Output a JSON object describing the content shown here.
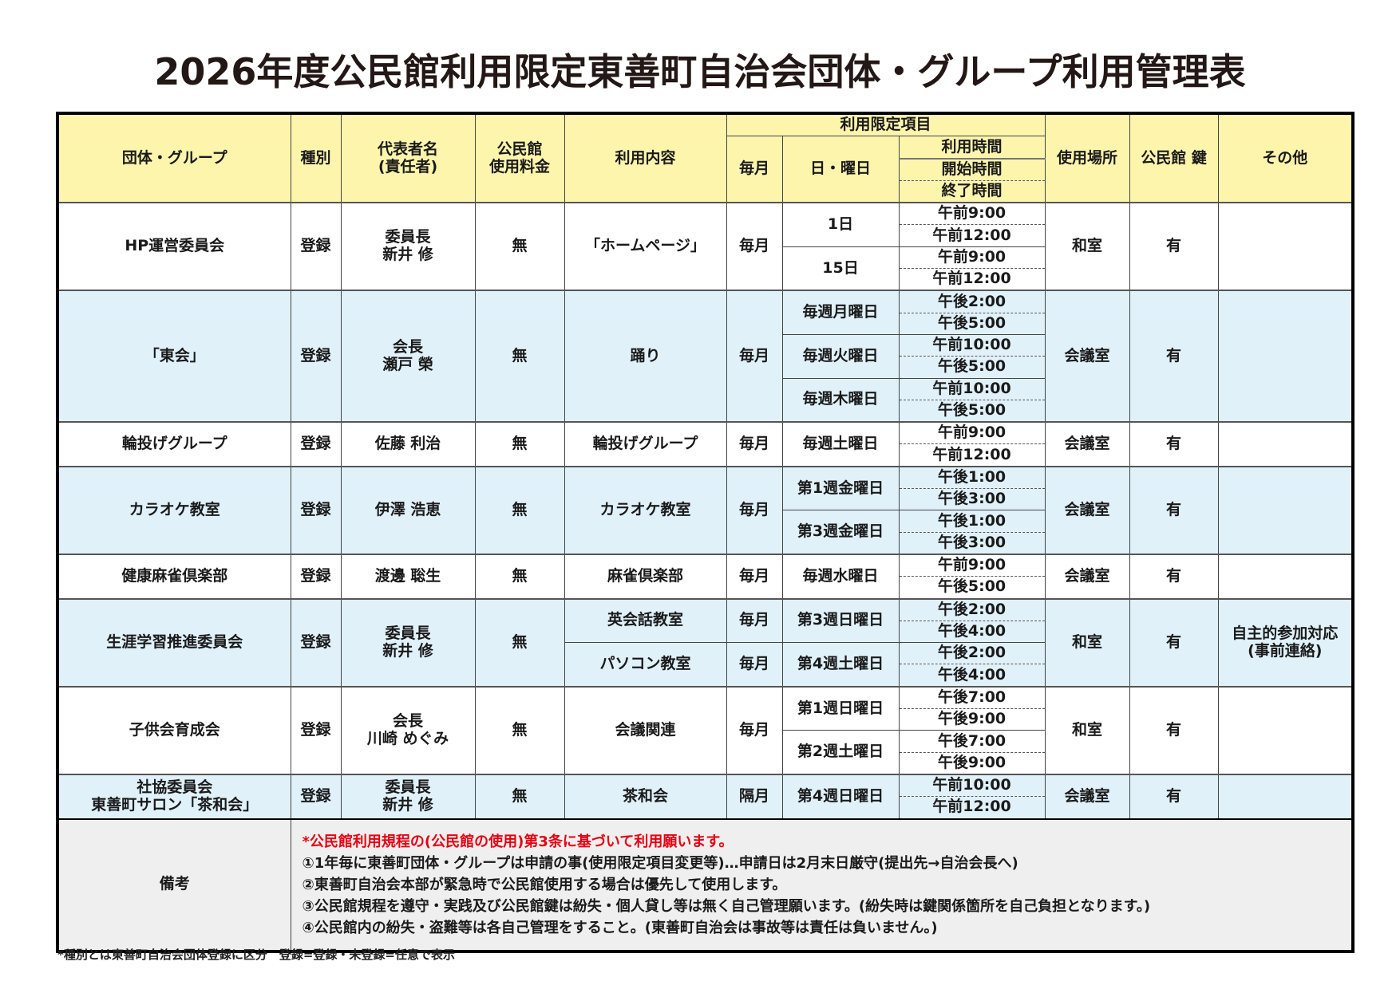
{
  "title": "2026年度公民館利用限定東善町自治会団体・グループ利用管理表",
  "colors": {
    "header_bg": "#fdf5ac",
    "alt_row_bg": "#e0f1fa",
    "remarks_bg": "#efefef",
    "notice_red": "#e60012"
  },
  "header": {
    "group": "団体・グループ",
    "type": "種別",
    "rep": "代表者名\n(責任者)",
    "fee": "公民館\n使用料金",
    "content": "利用内容",
    "limits": "利用限定項目",
    "freq": "毎月",
    "day": "日・曜日",
    "time": "利用時間",
    "start": "開始時間",
    "end": "終了時間",
    "place": "使用場所",
    "key": "公民館 鍵",
    "other": "その他"
  },
  "groups": [
    {
      "name": "HP運営委員会",
      "type": "登録",
      "rep": "委員長\n新井 修",
      "fee": "無",
      "place": "和室",
      "key": "有",
      "other": "",
      "contents": [
        {
          "label": "「ホームページ」",
          "freq": "毎月",
          "days": [
            {
              "day": "1日",
              "start": "午前9:00",
              "end": "午前12:00"
            },
            {
              "day": "15日",
              "start": "午前9:00",
              "end": "午前12:00"
            }
          ]
        }
      ]
    },
    {
      "name": "「東会」",
      "type": "登録",
      "rep": "会長\n瀬戸 榮",
      "fee": "無",
      "place": "会議室",
      "key": "有",
      "other": "",
      "contents": [
        {
          "label": "踊り",
          "freq": "毎月",
          "days": [
            {
              "day": "毎週月曜日",
              "start": "午後2:00",
              "end": "午後5:00"
            },
            {
              "day": "毎週火曜日",
              "start": "午前10:00",
              "end": "午後5:00"
            },
            {
              "day": "毎週木曜日",
              "start": "午前10:00",
              "end": "午後5:00"
            }
          ]
        }
      ]
    },
    {
      "name": "輪投げグループ",
      "type": "登録",
      "rep": "佐藤 利治",
      "fee": "無",
      "place": "会議室",
      "key": "有",
      "other": "",
      "contents": [
        {
          "label": "輪投げグループ",
          "freq": "毎月",
          "days": [
            {
              "day": "毎週土曜日",
              "start": "午前9:00",
              "end": "午前12:00"
            }
          ]
        }
      ]
    },
    {
      "name": "カラオケ教室",
      "type": "登録",
      "rep": "伊澤 浩恵",
      "fee": "無",
      "place": "会議室",
      "key": "有",
      "other": "",
      "contents": [
        {
          "label": "カラオケ教室",
          "freq": "毎月",
          "days": [
            {
              "day": "第1週金曜日",
              "start": "午後1:00",
              "end": "午後3:00"
            },
            {
              "day": "第3週金曜日",
              "start": "午後1:00",
              "end": "午後3:00"
            }
          ]
        }
      ]
    },
    {
      "name": "健康麻雀倶楽部",
      "type": "登録",
      "rep": "渡邊 聡生",
      "fee": "無",
      "place": "会議室",
      "key": "有",
      "other": "",
      "contents": [
        {
          "label": "麻雀倶楽部",
          "freq": "毎月",
          "days": [
            {
              "day": "毎週水曜日",
              "start": "午前9:00",
              "end": "午後5:00"
            }
          ]
        }
      ]
    },
    {
      "name": "生涯学習推進委員会",
      "type": "登録",
      "rep": "委員長\n新井 修",
      "fee": "無",
      "place": "和室",
      "key": "有",
      "other": "自主的参加対応\n(事前連絡)",
      "contents": [
        {
          "label": "英会話教室",
          "freq": "毎月",
          "days": [
            {
              "day": "第3週日曜日",
              "start": "午後2:00",
              "end": "午後4:00"
            }
          ]
        },
        {
          "label": "パソコン教室",
          "freq": "毎月",
          "days": [
            {
              "day": "第4週土曜日",
              "start": "午後2:00",
              "end": "午後4:00"
            }
          ]
        }
      ]
    },
    {
      "name": "子供会育成会",
      "type": "登録",
      "rep": "会長\n川崎 めぐみ",
      "fee": "無",
      "place": "和室",
      "key": "有",
      "other": "",
      "contents": [
        {
          "label": "会議関連",
          "freq": "毎月",
          "days": [
            {
              "day": "第1週日曜日",
              "start": "午後7:00",
              "end": "午後9:00"
            },
            {
              "day": "第2週土曜日",
              "start": "午後7:00",
              "end": "午後9:00"
            }
          ]
        }
      ]
    },
    {
      "name": "社協委員会\n東善町サロン「茶和会」",
      "type": "登録",
      "rep": "委員長\n新井 修",
      "fee": "無",
      "place": "会議室",
      "key": "有",
      "other": "",
      "contents": [
        {
          "label": "茶和会",
          "freq": "隔月",
          "days": [
            {
              "day": "第4週日曜日",
              "start": "午前10:00",
              "end": "午前12:00"
            }
          ]
        }
      ]
    }
  ],
  "remarks": {
    "label": "備考",
    "notice": "*公民館利用規程の(公民館の使用)第3条に基づいて利用願います。",
    "items": [
      "①1年毎に東善町団体・グループは申請の事(使用限定項目変更等)…申請日は2月末日厳守(提出先→自治会長へ)",
      "②東善町自治会本部が緊急時で公民館使用する場合は優先して使用します。",
      "③公民館規程を遵守・実践及び公民館鍵は紛失・個人貸し等は無く自己管理願います。(紛失時は鍵関係箇所を自己負担となります。)",
      "④公民館内の紛失・盗難等は各自己管理をすること。(東善町自治会は事故等は責任は負いません。)"
    ]
  },
  "footnote": "*種別とは東善町自治会団体登録に区分　登録=登録・未登録=任意で表示"
}
